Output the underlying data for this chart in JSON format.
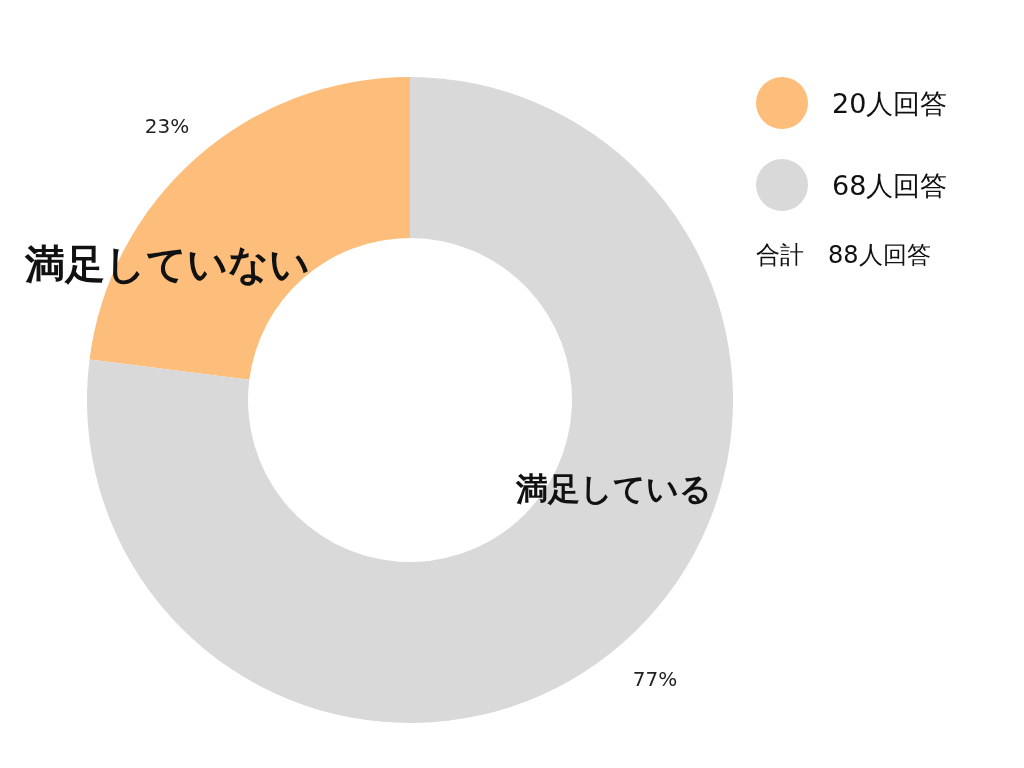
{
  "chart_data": {
    "type": "donut",
    "categories": [
      "20人回答",
      "68人回答"
    ],
    "values": [
      23,
      77
    ],
    "colors": [
      "#fdbe7b",
      "#d9d9d9"
    ],
    "value_labels": [
      "23%",
      "77%"
    ],
    "legend": "top right",
    "annotations": [
      "満足していない",
      "満足している",
      "合計　88人回答"
    ]
  }
}
